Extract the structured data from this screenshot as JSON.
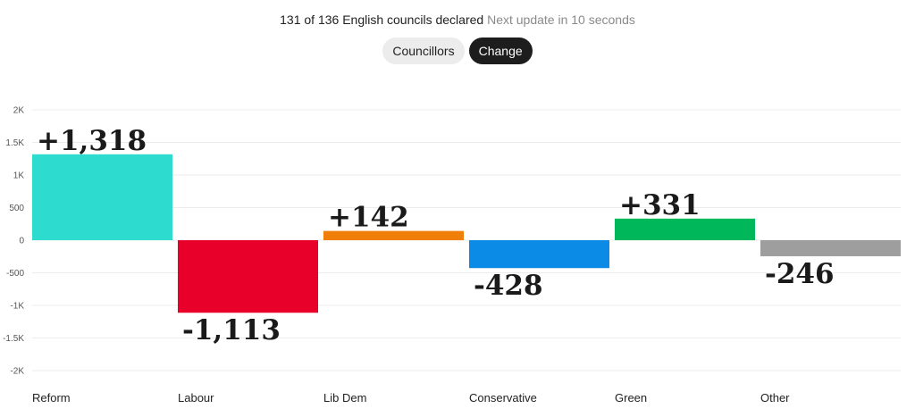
{
  "status": {
    "declared": "131 of 136 English councils declared",
    "next_update": "Next update in 10 seconds"
  },
  "toggle": {
    "councillors_label": "Councillors",
    "change_label": "Change",
    "selected": "Change"
  },
  "chart_data": {
    "type": "bar",
    "categories": [
      "Reform",
      "Labour",
      "Lib Dem",
      "Conservative",
      "Green",
      "Other"
    ],
    "values": [
      1318,
      -1113,
      142,
      -428,
      331,
      -246
    ],
    "value_labels": [
      "+1,318",
      "-1,113",
      "+142",
      "-428",
      "+331",
      "-246"
    ],
    "colors": [
      "#2edbcf",
      "#e8002a",
      "#f07f09",
      "#0b8be6",
      "#00b859",
      "#9e9e9e"
    ],
    "ylim": [
      -2000,
      2000
    ],
    "yticks": [
      2000,
      1500,
      1000,
      500,
      0,
      -500,
      -1000,
      -1500,
      -2000
    ],
    "ytick_labels": [
      "2K",
      "1.5K",
      "1K",
      "500",
      "0",
      "-500",
      "-1K",
      "-1.5K",
      "-2K"
    ],
    "grid": true,
    "title": "",
    "xlabel": "",
    "ylabel": ""
  }
}
